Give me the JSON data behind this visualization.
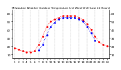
{
  "title": "Milwaukee Weather Outdoor Temperature (vs) Wind Chill (Last 24 Hours)",
  "temp_x": [
    0,
    1,
    2,
    3,
    4,
    5,
    6,
    7,
    8,
    9,
    10,
    11,
    12,
    13,
    14,
    15,
    16,
    17,
    18,
    19,
    20,
    21,
    22,
    23
  ],
  "temp_y": [
    18,
    16,
    14,
    13,
    13,
    14,
    22,
    32,
    44,
    50,
    53,
    55,
    57,
    57,
    57,
    57,
    55,
    52,
    47,
    40,
    32,
    25,
    22,
    20
  ],
  "wind_x": [
    6,
    7,
    8,
    9,
    10,
    11,
    12,
    13,
    14,
    15,
    16,
    17,
    18,
    19,
    20
  ],
  "wind_y": [
    15,
    22,
    34,
    44,
    49,
    53,
    55,
    55,
    55,
    55,
    53,
    50,
    44,
    36,
    27
  ],
  "temp_color": "#ff0000",
  "wind_color": "#0000ff",
  "bg_color": "#ffffff",
  "grid_color": "#808080",
  "ylim": [
    5,
    65
  ],
  "xlim": [
    -0.5,
    23.5
  ],
  "yticks_left": [
    10,
    20,
    30,
    40,
    50,
    60
  ],
  "ytick_labels": [
    "10",
    "20",
    "30",
    "40",
    "50",
    "60"
  ],
  "xtick_positions": [
    0,
    1,
    2,
    3,
    4,
    5,
    6,
    7,
    8,
    9,
    10,
    11,
    12,
    13,
    14,
    15,
    16,
    17,
    18,
    19,
    20,
    21,
    22,
    23
  ],
  "xtick_labels": [
    "1",
    "2",
    "3",
    "4",
    "5",
    "6",
    "7",
    "8",
    "9",
    "10",
    "11",
    "12",
    "13",
    "14",
    "15",
    "16",
    "17",
    "18",
    "19",
    "20",
    "21",
    "22",
    "23",
    "24"
  ],
  "vgrid_positions": [
    0,
    2,
    4,
    6,
    8,
    10,
    12,
    14,
    16,
    18,
    20,
    22
  ],
  "marker_style": ".",
  "linewidth": 0.0,
  "markersize": 2.0,
  "title_fontsize": 2.8,
  "tick_fontsize": 3.0
}
